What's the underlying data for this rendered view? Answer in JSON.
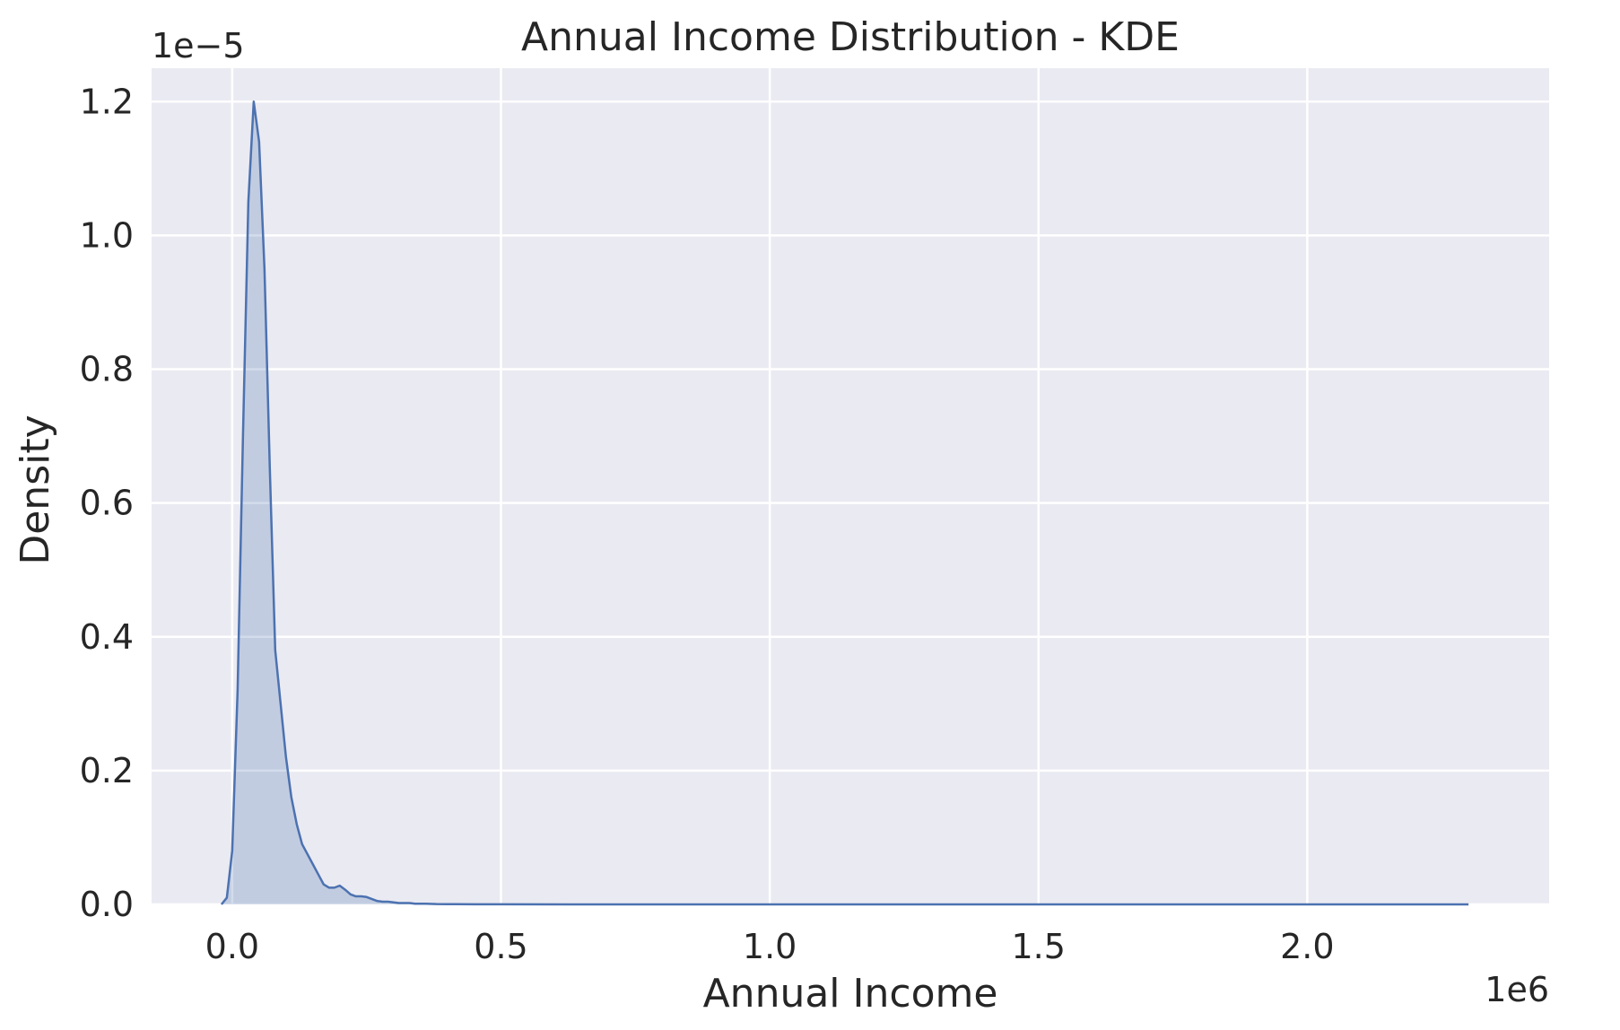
{
  "chart_data": {
    "type": "area",
    "title": "Annual Income Distribution - KDE",
    "xlabel": "Annual Income",
    "ylabel": "Density",
    "x_offset_label": "1e6",
    "y_offset_label": "1e−5",
    "xlim": [
      -0.15,
      2.45
    ],
    "ylim": [
      0,
      1.25
    ],
    "x_ticks": [
      0.0,
      0.5,
      1.0,
      1.5,
      2.0
    ],
    "x_tick_labels": [
      "0.0",
      "0.5",
      "1.0",
      "1.5",
      "2.0"
    ],
    "y_ticks": [
      0.0,
      0.2,
      0.4,
      0.6,
      0.8,
      1.0,
      1.2
    ],
    "y_tick_labels": [
      "0.0",
      "0.2",
      "0.4",
      "0.6",
      "0.8",
      "1.0",
      "1.2"
    ],
    "grid": true,
    "background_color": "#eaeaf2",
    "grid_color": "#ffffff",
    "series_color": "#4c72b0",
    "fill_opacity": 0.25,
    "series": [
      {
        "x": [
          -0.02,
          -0.01,
          0.0,
          0.01,
          0.02,
          0.03,
          0.04,
          0.05,
          0.06,
          0.07,
          0.08,
          0.09,
          0.1,
          0.11,
          0.12,
          0.13,
          0.14,
          0.15,
          0.16,
          0.17,
          0.18,
          0.19,
          0.2,
          0.21,
          0.22,
          0.23,
          0.24,
          0.25,
          0.26,
          0.27,
          0.28,
          0.29,
          0.3,
          0.31,
          0.32,
          0.33,
          0.34,
          0.35,
          0.36,
          0.38,
          0.4,
          0.45,
          0.5,
          0.7,
          1.0,
          1.5,
          2.0,
          2.3
        ],
        "y": [
          0.0,
          0.01,
          0.08,
          0.32,
          0.7,
          1.05,
          1.2,
          1.14,
          0.95,
          0.65,
          0.38,
          0.3,
          0.22,
          0.16,
          0.12,
          0.09,
          0.075,
          0.06,
          0.045,
          0.03,
          0.025,
          0.025,
          0.028,
          0.022,
          0.015,
          0.012,
          0.012,
          0.011,
          0.008,
          0.005,
          0.004,
          0.004,
          0.003,
          0.002,
          0.002,
          0.002,
          0.001,
          0.001,
          0.001,
          0.0005,
          0.0004,
          0.0002,
          0.0001,
          0.0,
          0.0,
          0.0,
          0.0,
          0.0
        ]
      }
    ]
  }
}
